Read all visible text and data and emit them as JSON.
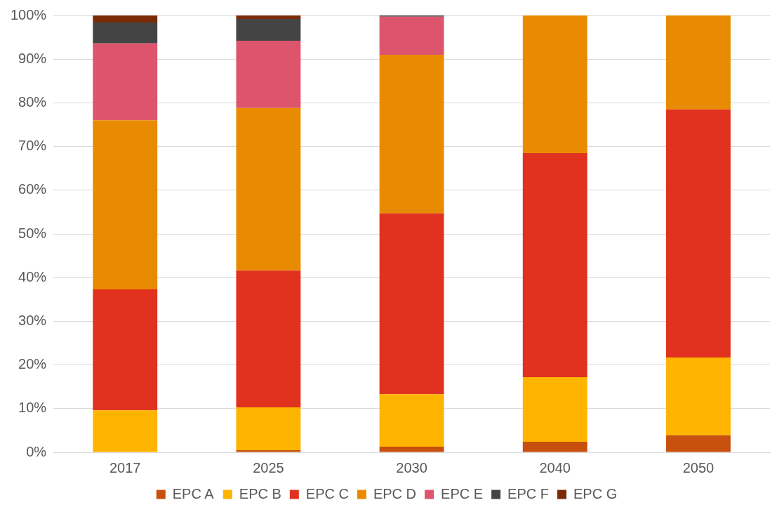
{
  "chart_data": {
    "type": "bar",
    "stacked": true,
    "categories": [
      "2017",
      "2025",
      "2030",
      "2040",
      "2050"
    ],
    "series": [
      {
        "name": "EPC A",
        "color": "#c8500f",
        "values": [
          0,
          0.5,
          1.3,
          2.4,
          3.9
        ]
      },
      {
        "name": "EPC B",
        "color": "#ffb400",
        "values": [
          9.6,
          9.8,
          12.0,
          14.8,
          17.8
        ]
      },
      {
        "name": "EPC C",
        "color": "#e0321f",
        "values": [
          27.7,
          31.3,
          41.4,
          51.3,
          56.8
        ]
      },
      {
        "name": "EPC D",
        "color": "#e98b00",
        "values": [
          38.7,
          37.2,
          36.3,
          31.5,
          21.5
        ]
      },
      {
        "name": "EPC E",
        "color": "#dd556c",
        "values": [
          17.6,
          15.4,
          8.7,
          0,
          0
        ]
      },
      {
        "name": "EPC F",
        "color": "#444444",
        "values": [
          4.8,
          5.0,
          0.3,
          0,
          0
        ]
      },
      {
        "name": "EPC G",
        "color": "#7a2a05",
        "values": [
          1.6,
          0.8,
          0,
          0,
          0
        ]
      }
    ],
    "ylim": [
      0,
      100
    ],
    "yticks": [
      {
        "value": 0,
        "label": "0%"
      },
      {
        "value": 10,
        "label": "10%"
      },
      {
        "value": 20,
        "label": "20%"
      },
      {
        "value": 30,
        "label": "30%"
      },
      {
        "value": 40,
        "label": "40%"
      },
      {
        "value": 50,
        "label": "50%"
      },
      {
        "value": 60,
        "label": "60%"
      },
      {
        "value": 70,
        "label": "70%"
      },
      {
        "value": 80,
        "label": "80%"
      },
      {
        "value": 90,
        "label": "90%"
      },
      {
        "value": 100,
        "label": "100%"
      }
    ],
    "grid": "y",
    "legend": "bottom"
  }
}
